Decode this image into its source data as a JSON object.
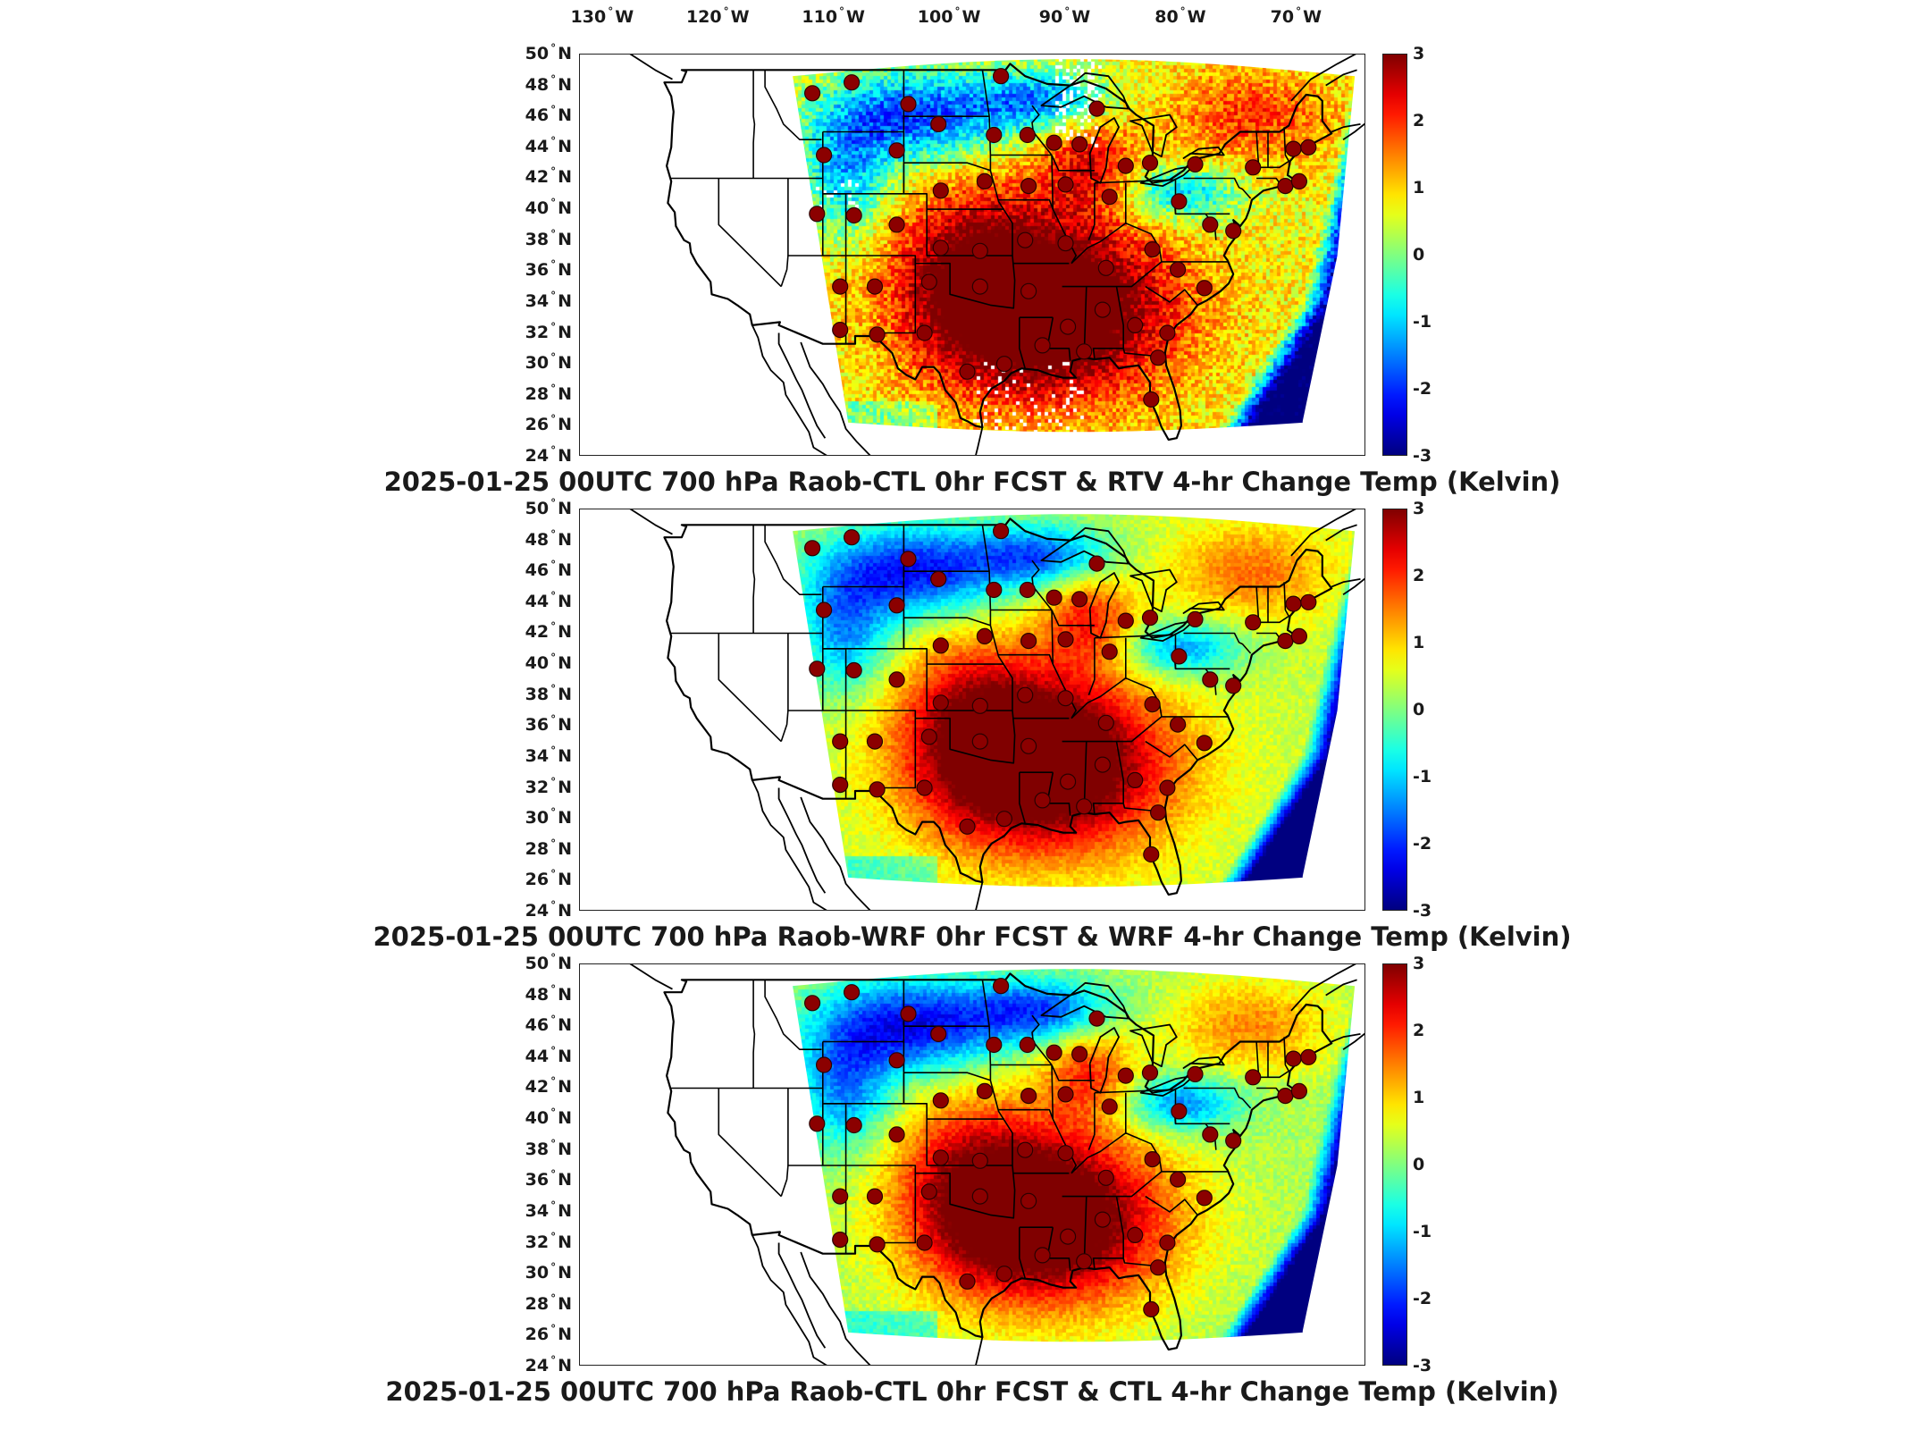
{
  "figure": {
    "lon_labels": [
      "130",
      "120",
      "110",
      "100",
      "90",
      "80",
      "70"
    ],
    "lon_suffix": "W",
    "lat_labels": [
      "50",
      "48",
      "46",
      "44",
      "42",
      "40",
      "38",
      "36",
      "34",
      "32",
      "30",
      "28",
      "26",
      "24"
    ],
    "lat_suffix": "N",
    "colorbar_ticks": [
      "3",
      "2",
      "1",
      "0",
      "-1",
      "-2",
      "-3"
    ],
    "colormap": "jet",
    "panels": [
      {
        "title": "2025-01-25 00UTC 700 hPa Raob-CTL 0hr FCST & RTV 4-hr Change Temp (Kelvin)",
        "variant": "rtv"
      },
      {
        "title": "2025-01-25 00UTC 700 hPa Raob-WRF 0hr FCST & WRF 4-hr Change Temp (Kelvin)",
        "variant": "wrf"
      },
      {
        "title": "2025-01-25 00UTC 700 hPa Raob-CTL 0hr FCST & CTL 4-hr Change Temp (Kelvin)",
        "variant": "ctl"
      }
    ]
  },
  "chart_data": {
    "type": "heatmap",
    "x_axis": {
      "label": "",
      "range_deg_west": [
        132,
        64
      ],
      "ticks_deg_west": [
        130,
        120,
        110,
        100,
        90,
        80,
        70
      ]
    },
    "y_axis": {
      "label": "",
      "range_deg_north": [
        24,
        50
      ],
      "ticks_deg_north": [
        50,
        48,
        46,
        44,
        42,
        40,
        38,
        36,
        34,
        32,
        30,
        28,
        26,
        24
      ]
    },
    "color_scale": {
      "min": -3,
      "max": 3,
      "unit": "Kelvin",
      "colormap": "jet"
    },
    "raob_sites_lon_lat": [
      [
        -111.9,
        47.5
      ],
      [
        -108.5,
        48.2
      ],
      [
        -103.6,
        46.8
      ],
      [
        -101.0,
        45.5
      ],
      [
        -95.6,
        48.6
      ],
      [
        -96.2,
        44.8
      ],
      [
        -93.3,
        44.8
      ],
      [
        -91.0,
        44.3
      ],
      [
        -88.8,
        44.2
      ],
      [
        -87.3,
        46.5
      ],
      [
        -84.8,
        42.8
      ],
      [
        -82.7,
        43.0
      ],
      [
        -78.8,
        42.9
      ],
      [
        -73.8,
        42.7
      ],
      [
        -70.3,
        43.9
      ],
      [
        -69.0,
        44.0
      ],
      [
        -71.0,
        41.5
      ],
      [
        -69.8,
        41.8
      ],
      [
        -110.9,
        43.5
      ],
      [
        -104.6,
        43.8
      ],
      [
        -100.8,
        41.2
      ],
      [
        -97.0,
        41.8
      ],
      [
        -93.2,
        41.5
      ],
      [
        -90.0,
        41.6
      ],
      [
        -86.2,
        40.8
      ],
      [
        -80.2,
        40.5
      ],
      [
        -77.5,
        39.0
      ],
      [
        -75.5,
        38.6
      ],
      [
        -108.3,
        39.6
      ],
      [
        -111.5,
        39.7
      ],
      [
        -104.6,
        39.0
      ],
      [
        -100.8,
        37.5
      ],
      [
        -97.4,
        37.3
      ],
      [
        -93.5,
        38.0
      ],
      [
        -90.0,
        37.8
      ],
      [
        -82.5,
        37.4
      ],
      [
        -86.5,
        36.2
      ],
      [
        -80.3,
        36.1
      ],
      [
        -78.0,
        34.9
      ],
      [
        -109.5,
        35.0
      ],
      [
        -106.5,
        35.0
      ],
      [
        -101.8,
        35.3
      ],
      [
        -97.4,
        35.0
      ],
      [
        -93.2,
        34.7
      ],
      [
        -86.8,
        33.5
      ],
      [
        -89.8,
        32.4
      ],
      [
        -84.0,
        32.5
      ],
      [
        -81.2,
        32.0
      ],
      [
        -82.0,
        30.4
      ],
      [
        -82.6,
        27.7
      ],
      [
        -109.5,
        32.2
      ],
      [
        -106.3,
        31.9
      ],
      [
        -102.2,
        32.0
      ],
      [
        -98.5,
        29.5
      ],
      [
        -95.3,
        30.0
      ],
      [
        -92.0,
        31.2
      ],
      [
        -88.4,
        30.8
      ]
    ],
    "colorbar_ticks": [
      3,
      2,
      1,
      0,
      -1,
      -2,
      -3
    ]
  }
}
